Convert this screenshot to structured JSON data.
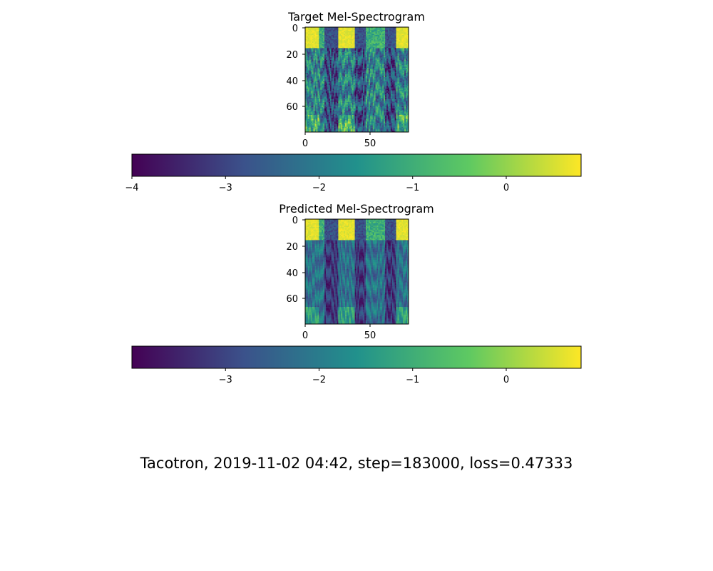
{
  "caption": "Tacotron, 2019-11-02 04:42, step=183000, loss=0.47333",
  "colormap": [
    "#440154",
    "#3b528b",
    "#21918c",
    "#5ec962",
    "#fde725"
  ],
  "chart_data": [
    {
      "type": "heatmap",
      "title": "Target Mel-Spectrogram",
      "xlim": [
        0,
        75
      ],
      "ylim": [
        80,
        0
      ],
      "xticks": [
        "0",
        "50"
      ],
      "yticks": [
        "0",
        "20",
        "40",
        "60"
      ],
      "colorbar": {
        "range": [
          -4.0,
          0.8
        ],
        "ticks": [
          "−4",
          "−3",
          "−2",
          "−1",
          "0"
        ],
        "tick_values": [
          -4,
          -3,
          -2,
          -1,
          0
        ]
      },
      "dense_low_band_columns": [
        [
          0,
          10
        ],
        [
          24,
          36
        ],
        [
          66,
          75
        ]
      ],
      "dark_column_ranges": [
        [
          14,
          24
        ],
        [
          36,
          44
        ],
        [
          58,
          66
        ]
      ]
    },
    {
      "type": "heatmap",
      "title": "Predicted Mel-Spectrogram",
      "xlim": [
        0,
        75
      ],
      "ylim": [
        80,
        0
      ],
      "xticks": [
        "0",
        "50"
      ],
      "yticks": [
        "0",
        "20",
        "40",
        "60"
      ],
      "colorbar": {
        "range": [
          -4.0,
          0.8
        ],
        "ticks": [
          "−3",
          "−2",
          "−1",
          "0"
        ],
        "tick_values": [
          -3,
          -2,
          -1,
          0
        ]
      },
      "dense_low_band_columns": [
        [
          0,
          10
        ],
        [
          24,
          36
        ],
        [
          66,
          75
        ]
      ],
      "dark_column_ranges": [
        [
          14,
          24
        ],
        [
          36,
          44
        ],
        [
          58,
          66
        ]
      ]
    }
  ]
}
